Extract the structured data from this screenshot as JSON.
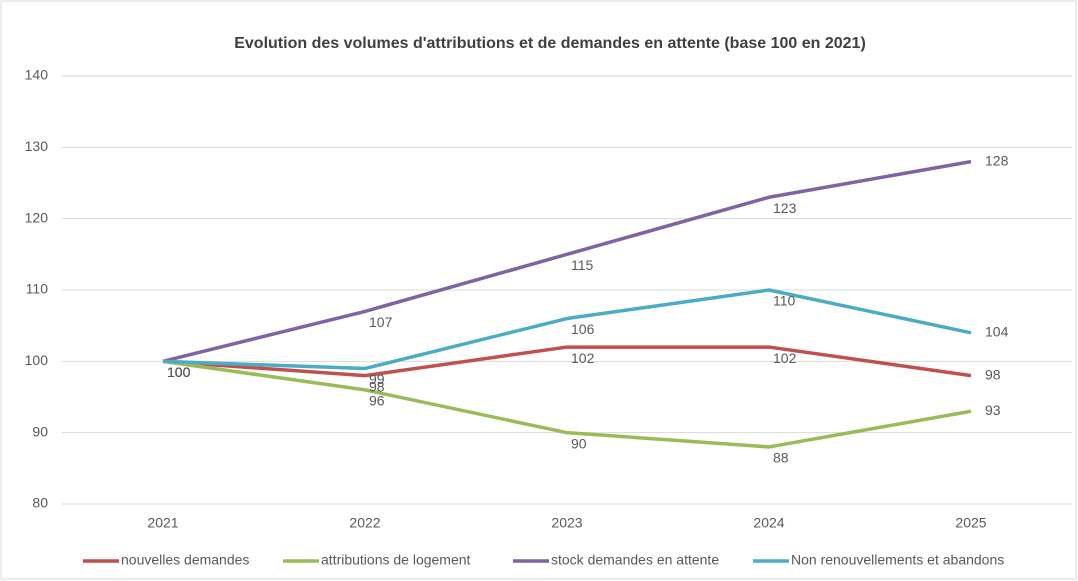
{
  "chart_data": {
    "type": "line",
    "title": "Evolution des volumes d'attributions et de demandes en attente (base 100 en 2021)",
    "categories": [
      "2021",
      "2022",
      "2023",
      "2024",
      "2025"
    ],
    "series": [
      {
        "name": "nouvelles demandes",
        "color": "#c0504d",
        "values": [
          100,
          98,
          102,
          102,
          98
        ]
      },
      {
        "name": "attributions de logement",
        "color": "#9bbb59",
        "values": [
          100,
          96,
          90,
          88,
          93
        ]
      },
      {
        "name": "stock demandes en attente",
        "color": "#8064a2",
        "values": [
          100,
          107,
          115,
          123,
          128
        ]
      },
      {
        "name": "Non renouvellements et abandons",
        "color": "#4bacc6",
        "values": [
          100,
          99,
          106,
          110,
          104
        ]
      }
    ],
    "ylim": [
      80,
      140
    ],
    "yticks": [
      80,
      90,
      100,
      110,
      120,
      130,
      140
    ],
    "grid": true,
    "legend": "bottom"
  }
}
